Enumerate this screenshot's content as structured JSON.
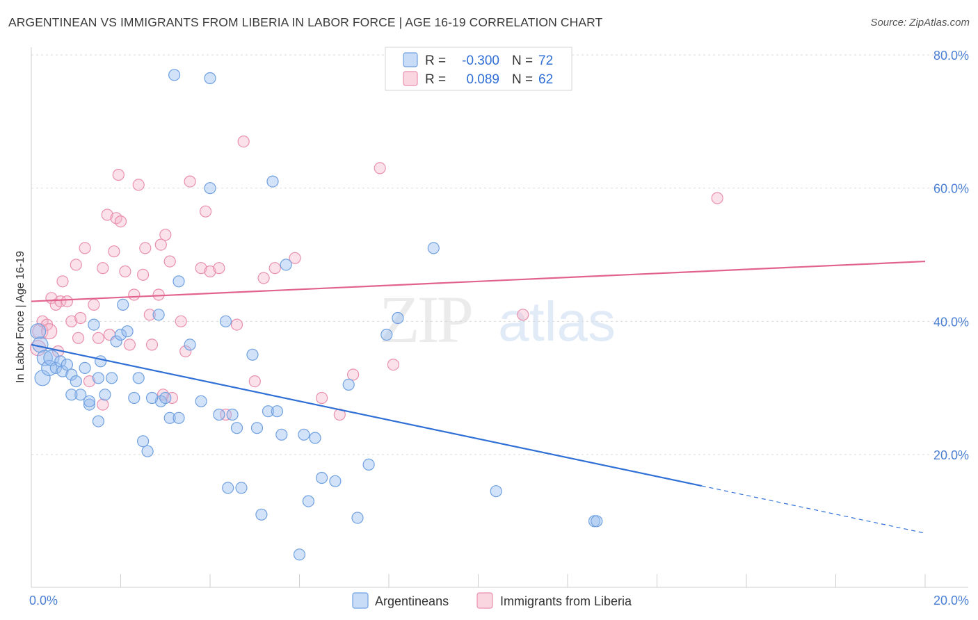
{
  "title": "ARGENTINEAN VS IMMIGRANTS FROM LIBERIA IN LABOR FORCE | AGE 16-19 CORRELATION CHART",
  "source": "Source: ZipAtlas.com",
  "watermark": {
    "zip": "ZIP",
    "atlas": "atlas"
  },
  "colors": {
    "blue": "#6fa0e0",
    "blue_fill": "rgba(155,190,240,0.45)",
    "blue_line": "#2f6fd6",
    "pink": "#e98fae",
    "pink_fill": "rgba(245,180,200,0.40)",
    "pink_line": "#e2628f",
    "tick_text": "#4a7fd4",
    "grid": "#d9d9d9"
  },
  "legend": {
    "series1": {
      "r_label": "R =",
      "r_value": "-0.300",
      "n_label": "N =",
      "n_value": "72"
    },
    "series2": {
      "r_label": "R =",
      "r_value": "0.089",
      "n_label": "N =",
      "n_value": "62"
    }
  },
  "chart_data": {
    "type": "scatter",
    "title": "ARGENTINEAN VS IMMIGRANTS FROM LIBERIA IN LABOR FORCE | AGE 16-19 CORRELATION CHART",
    "xlabel": "",
    "ylabel": "In Labor Force | Age 16-19",
    "xlim": [
      0,
      20
    ],
    "ylim": [
      0,
      84
    ],
    "x_tick_labels": [
      "0.0%",
      "20.0%"
    ],
    "y_ticks": [
      20,
      40,
      60,
      80
    ],
    "y_tick_labels": [
      "20.0%",
      "40.0%",
      "60.0%",
      "80.0%"
    ],
    "grid": true,
    "series": [
      {
        "name": "Argentineans",
        "color": "#6fa0e0",
        "r": -0.3,
        "n": 72,
        "trend": {
          "x0": 0.0,
          "y0": 36.5,
          "x1": 15.0,
          "y1": 15.3,
          "dash_to_x": 20.0,
          "dash_to_y": 8.2
        },
        "points": [
          [
            0.15,
            38.5
          ],
          [
            0.2,
            36.5
          ],
          [
            0.25,
            31.5
          ],
          [
            0.3,
            34.5
          ],
          [
            0.4,
            33.0
          ],
          [
            0.45,
            34.5
          ],
          [
            0.55,
            33.0
          ],
          [
            0.65,
            34.0
          ],
          [
            0.7,
            32.5
          ],
          [
            0.8,
            33.5
          ],
          [
            0.9,
            32.0
          ],
          [
            1.0,
            31.0
          ],
          [
            1.2,
            33.0
          ],
          [
            1.3,
            27.5
          ],
          [
            1.1,
            29.0
          ],
          [
            1.5,
            31.5
          ],
          [
            1.55,
            34.0
          ],
          [
            1.4,
            39.5
          ],
          [
            1.65,
            29.0
          ],
          [
            1.8,
            31.5
          ],
          [
            1.9,
            37.0
          ],
          [
            2.0,
            38.0
          ],
          [
            2.05,
            42.5
          ],
          [
            2.15,
            38.5
          ],
          [
            2.3,
            28.5
          ],
          [
            2.4,
            31.5
          ],
          [
            2.5,
            22.0
          ],
          [
            2.6,
            20.5
          ],
          [
            2.9,
            28.0
          ],
          [
            3.0,
            28.5
          ],
          [
            3.1,
            25.5
          ],
          [
            3.3,
            25.5
          ],
          [
            3.3,
            46.0
          ],
          [
            3.2,
            77.0
          ],
          [
            3.55,
            36.5
          ],
          [
            4.0,
            60.0
          ],
          [
            4.0,
            76.5
          ],
          [
            4.2,
            26.0
          ],
          [
            4.35,
            40.0
          ],
          [
            4.4,
            15.0
          ],
          [
            4.5,
            26.0
          ],
          [
            4.6,
            24.0
          ],
          [
            4.7,
            15.0
          ],
          [
            4.95,
            35.0
          ],
          [
            5.15,
            11.0
          ],
          [
            5.3,
            26.5
          ],
          [
            5.4,
            61.0
          ],
          [
            5.5,
            26.5
          ],
          [
            5.6,
            23.0
          ],
          [
            5.7,
            48.5
          ],
          [
            6.0,
            5.0
          ],
          [
            6.1,
            23.0
          ],
          [
            6.2,
            13.0
          ],
          [
            6.35,
            22.5
          ],
          [
            6.5,
            16.5
          ],
          [
            6.8,
            16.0
          ],
          [
            7.1,
            30.5
          ],
          [
            7.3,
            10.5
          ],
          [
            7.55,
            18.5
          ],
          [
            7.95,
            38.0
          ],
          [
            8.2,
            40.5
          ],
          [
            9.0,
            51.0
          ],
          [
            10.4,
            14.5
          ],
          [
            12.6,
            10.0
          ],
          [
            12.65,
            10.0
          ],
          [
            1.5,
            25.0
          ],
          [
            1.3,
            28.0
          ],
          [
            2.7,
            28.5
          ],
          [
            0.9,
            29.0
          ],
          [
            2.85,
            41.0
          ],
          [
            5.05,
            24.0
          ],
          [
            3.8,
            28.0
          ]
        ]
      },
      {
        "name": "Immigrants from Liberia",
        "color": "#e98fae",
        "r": 0.089,
        "n": 62,
        "trend": {
          "x0": 0.0,
          "y0": 43.0,
          "x1": 20.0,
          "y1": 49.0
        },
        "points": [
          [
            0.15,
            36.0
          ],
          [
            0.2,
            38.5
          ],
          [
            0.25,
            40.0
          ],
          [
            0.35,
            39.5
          ],
          [
            0.4,
            38.5
          ],
          [
            0.45,
            43.5
          ],
          [
            0.55,
            42.5
          ],
          [
            0.65,
            43.0
          ],
          [
            0.7,
            46.0
          ],
          [
            0.8,
            43.0
          ],
          [
            0.9,
            40.0
          ],
          [
            1.0,
            48.5
          ],
          [
            1.05,
            37.5
          ],
          [
            1.1,
            40.5
          ],
          [
            1.2,
            51.0
          ],
          [
            1.3,
            31.0
          ],
          [
            1.4,
            42.5
          ],
          [
            1.5,
            37.5
          ],
          [
            1.6,
            48.0
          ],
          [
            1.7,
            56.0
          ],
          [
            1.75,
            38.0
          ],
          [
            1.9,
            55.5
          ],
          [
            1.95,
            62.0
          ],
          [
            2.0,
            55.0
          ],
          [
            2.1,
            47.5
          ],
          [
            2.2,
            36.5
          ],
          [
            2.3,
            44.0
          ],
          [
            2.4,
            60.5
          ],
          [
            2.5,
            47.0
          ],
          [
            2.55,
            51.0
          ],
          [
            2.65,
            41.0
          ],
          [
            2.7,
            36.5
          ],
          [
            2.85,
            44.0
          ],
          [
            2.9,
            51.5
          ],
          [
            3.0,
            53.0
          ],
          [
            3.1,
            49.0
          ],
          [
            3.15,
            28.5
          ],
          [
            3.35,
            40.0
          ],
          [
            3.45,
            35.5
          ],
          [
            3.55,
            61.0
          ],
          [
            3.8,
            48.0
          ],
          [
            3.9,
            56.5
          ],
          [
            4.0,
            47.5
          ],
          [
            4.2,
            48.0
          ],
          [
            4.35,
            26.0
          ],
          [
            4.6,
            39.5
          ],
          [
            4.75,
            67.0
          ],
          [
            5.0,
            31.0
          ],
          [
            5.2,
            46.5
          ],
          [
            5.45,
            48.0
          ],
          [
            5.9,
            49.5
          ],
          [
            6.5,
            28.5
          ],
          [
            6.9,
            26.0
          ],
          [
            7.2,
            32.0
          ],
          [
            7.8,
            63.0
          ],
          [
            8.1,
            33.5
          ],
          [
            11.0,
            41.0
          ],
          [
            15.35,
            58.5
          ],
          [
            1.6,
            27.5
          ],
          [
            0.6,
            35.5
          ],
          [
            2.95,
            29.0
          ],
          [
            1.85,
            50.5
          ]
        ]
      }
    ]
  },
  "bottom_legend": {
    "series1": "Argentineans",
    "series2": "Immigrants from Liberia"
  }
}
